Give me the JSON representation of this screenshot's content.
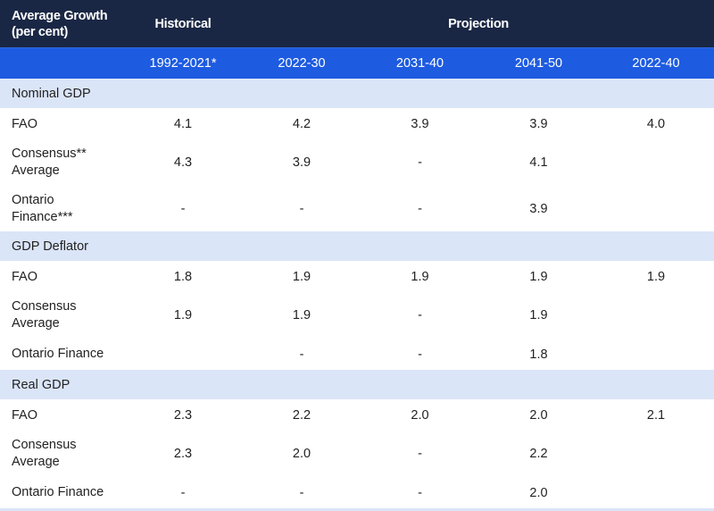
{
  "header": {
    "corner_line1": "Average Growth",
    "corner_line2": "(per cent)",
    "historical": "Historical",
    "projection": "Projection",
    "columns": [
      "1992-2021*",
      "2022-30",
      "2031-40",
      "2041-50",
      "2022-40"
    ]
  },
  "sections": [
    {
      "title": "Nominal GDP",
      "rows": [
        {
          "label1": "FAO",
          "label2": "",
          "values": [
            "4.1",
            "4.2",
            "3.9",
            "3.9",
            "4.0"
          ]
        },
        {
          "label1": "Consensus**",
          "label2": "Average",
          "values": [
            "4.3",
            "3.9",
            "-",
            "4.1",
            ""
          ]
        },
        {
          "label1": "Ontario",
          "label2": "Finance***",
          "values": [
            "-",
            "-",
            "-",
            "3.9",
            ""
          ]
        }
      ]
    },
    {
      "title": "GDP Deflator",
      "rows": [
        {
          "label1": "FAO",
          "label2": "",
          "values": [
            "1.8",
            "1.9",
            "1.9",
            "1.9",
            "1.9"
          ]
        },
        {
          "label1": "Consensus",
          "label2": "Average",
          "values": [
            "1.9",
            "1.9",
            "-",
            "1.9",
            ""
          ]
        },
        {
          "label1": "Ontario Finance",
          "label2": "",
          "values": [
            "",
            "-",
            "-",
            "1.8",
            ""
          ]
        }
      ]
    },
    {
      "title": "Real GDP",
      "rows": [
        {
          "label1": "FAO",
          "label2": "",
          "values": [
            "2.3",
            "2.2",
            "2.0",
            "2.0",
            "2.1"
          ]
        },
        {
          "label1": "Consensus",
          "label2": "Average",
          "values": [
            "2.3",
            "2.0",
            "-",
            "2.2",
            ""
          ]
        },
        {
          "label1": "Ontario Finance",
          "label2": "",
          "values": [
            "-",
            "-",
            "-",
            "2.0",
            ""
          ]
        }
      ]
    }
  ]
}
